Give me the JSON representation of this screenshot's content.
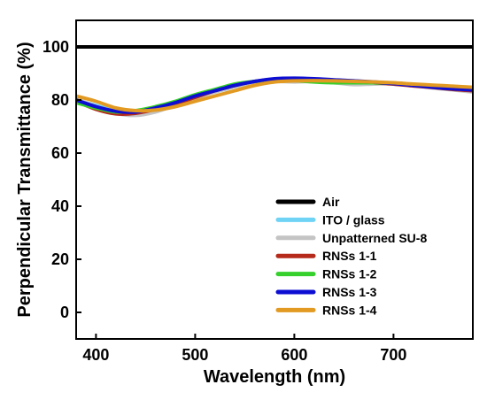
{
  "chart_data": {
    "type": "line",
    "title": "",
    "xlabel": "Wavelength (nm)",
    "ylabel": "Perpendicular Transmittance (%)",
    "xlim": [
      380,
      780
    ],
    "ylim": [
      -10,
      110
    ],
    "xticks": [
      400,
      500,
      600,
      700
    ],
    "yticks": [
      0,
      20,
      40,
      60,
      80,
      100
    ],
    "grid": false,
    "legend_position": "bottom-right",
    "x": [
      380,
      400,
      420,
      440,
      460,
      480,
      500,
      520,
      540,
      560,
      580,
      600,
      620,
      640,
      660,
      680,
      700,
      720,
      740,
      760,
      780
    ],
    "series": [
      {
        "name": "Air",
        "color": "#000000",
        "values": [
          100,
          100,
          100,
          100,
          100,
          100,
          100,
          100,
          100,
          100,
          100,
          100,
          100,
          100,
          100,
          100,
          100,
          100,
          100,
          100,
          100
        ]
      },
      {
        "name": "ITO / glass",
        "color": "#6fd3f5",
        "values": [
          80.0,
          78.0,
          76.0,
          75.8,
          77.0,
          79.0,
          81.0,
          83.0,
          85.0,
          86.5,
          87.5,
          88.0,
          87.8,
          87.5,
          87.0,
          86.5,
          86.0,
          85.5,
          85.0,
          84.5,
          84.0
        ]
      },
      {
        "name": "Unpatterned SU-8",
        "color": "#c4c4c4",
        "values": [
          80.5,
          77.5,
          75.0,
          74.2,
          75.5,
          78.0,
          80.5,
          83.0,
          85.0,
          86.5,
          87.0,
          86.8,
          87.0,
          86.5,
          85.8,
          86.0,
          86.2,
          85.5,
          84.5,
          83.8,
          83.0
        ]
      },
      {
        "name": "RNSs 1-1",
        "color": "#b52a1b",
        "values": [
          79.5,
          76.5,
          74.8,
          75.0,
          76.5,
          78.5,
          81.0,
          83.5,
          85.5,
          87.0,
          87.8,
          87.5,
          87.3,
          87.2,
          87.0,
          86.5,
          86.0,
          85.3,
          84.7,
          84.0,
          83.5
        ]
      },
      {
        "name": "RNSs 1-2",
        "color": "#35d02b",
        "values": [
          79.0,
          77.0,
          75.5,
          76.0,
          77.5,
          79.5,
          82.0,
          84.0,
          86.0,
          87.0,
          87.5,
          87.3,
          86.8,
          86.5,
          86.5,
          86.5,
          86.3,
          85.8,
          85.0,
          84.3,
          84.0
        ]
      },
      {
        "name": "RNSs 1-3",
        "color": "#0d0ed3",
        "values": [
          80.0,
          77.5,
          75.8,
          75.5,
          77.0,
          79.0,
          81.5,
          83.5,
          85.5,
          87.0,
          88.0,
          88.2,
          88.0,
          87.6,
          87.2,
          86.8,
          86.2,
          85.5,
          84.8,
          84.2,
          83.8
        ]
      },
      {
        "name": "RNSs 1-4",
        "color": "#e29a22",
        "values": [
          81.5,
          79.5,
          77.0,
          76.0,
          76.2,
          77.5,
          79.5,
          81.5,
          83.5,
          85.5,
          86.8,
          87.2,
          87.3,
          87.2,
          87.0,
          86.8,
          86.5,
          86.0,
          85.6,
          85.2,
          84.8
        ]
      }
    ]
  }
}
